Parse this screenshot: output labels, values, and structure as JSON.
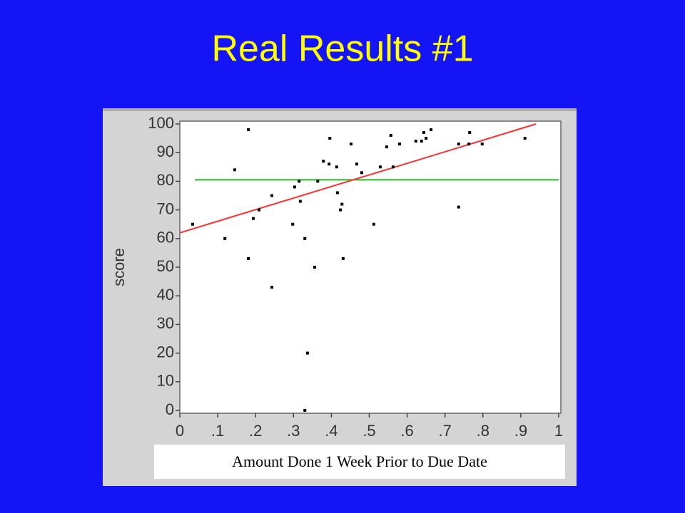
{
  "chart_data": {
    "type": "scatter",
    "title": "Real Results #1",
    "x_label": "Amount Done 1 Week Prior to Due Date",
    "y_label": "score",
    "color": "#000000",
    "x": [
      0.034,
      0.119,
      0.145,
      0.181,
      0.181,
      0.194,
      0.209,
      0.243,
      0.243,
      0.298,
      0.303,
      0.315,
      0.318,
      0.33,
      0.33,
      0.337,
      0.356,
      0.364,
      0.379,
      0.394,
      0.396,
      0.414,
      0.416,
      0.424,
      0.428,
      0.431,
      0.452,
      0.467,
      0.48,
      0.512,
      0.529,
      0.546,
      0.557,
      0.563,
      0.58,
      0.623,
      0.638,
      0.644,
      0.65,
      0.663,
      0.736,
      0.736,
      0.763,
      0.765,
      0.798,
      0.911
    ],
    "y": [
      65,
      60,
      84,
      98,
      53,
      67,
      70,
      75,
      43,
      65,
      78,
      80,
      73,
      60,
      0,
      20,
      50,
      80,
      87,
      86,
      95,
      85,
      76,
      70,
      72,
      53,
      93,
      86,
      83,
      65,
      85,
      92,
      96,
      85,
      93,
      94,
      94,
      97,
      95,
      98,
      93,
      71,
      93,
      97,
      93,
      95
    ],
    "fit_line": {
      "x": [
        0,
        0.94
      ],
      "y": [
        62,
        100
      ],
      "color": "#ff3030"
    },
    "mean_line": {
      "x": [
        0.04,
        1
      ],
      "y": [
        80.5,
        80.5
      ],
      "color": "#22bb22"
    },
    "xlim": [
      0,
      1
    ],
    "ylim": [
      0,
      100
    ],
    "xticks": [
      0,
      {
        "value": 0.1,
        "label": ".1"
      },
      {
        "value": 0.2,
        "label": ".2"
      },
      {
        "value": 0.3,
        "label": ".3"
      },
      {
        "value": 0.4,
        "label": ".4"
      },
      {
        "value": 0.5,
        "label": ".5"
      },
      {
        "value": 0.6,
        "label": ".6"
      },
      {
        "value": 0.7,
        "label": ".7"
      },
      {
        "value": 0.8,
        "label": ".8"
      },
      {
        "value": 0.9,
        "label": ".9"
      },
      1
    ],
    "yticks": [
      0,
      10,
      20,
      30,
      40,
      50,
      60,
      70,
      80,
      90,
      100
    ]
  }
}
